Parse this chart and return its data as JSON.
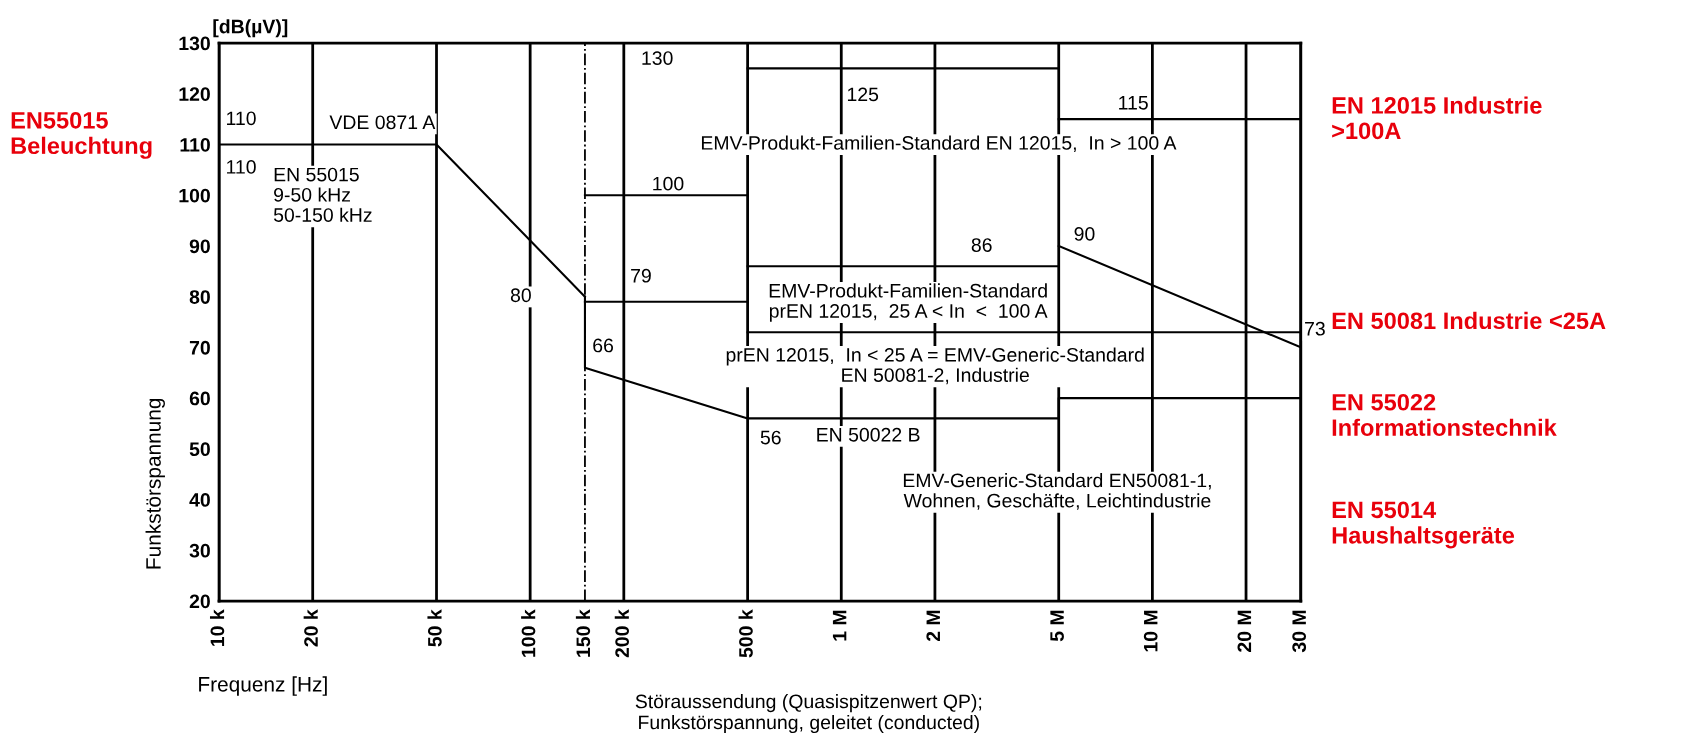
{
  "chart_data": {
    "type": "line",
    "xlabel": "Frequenz [Hz]",
    "ylabel": "Funkstörspannung",
    "log": "x",
    "xlim": [
      10000,
      30000000
    ],
    "xticks": [
      {
        "value": 10000,
        "label": "10 k"
      },
      {
        "value": 20000,
        "label": "20 k"
      },
      {
        "value": 50000,
        "label": "50 k"
      },
      {
        "value": 100000,
        "label": "100 k"
      },
      {
        "value": 150000,
        "label": "150 k"
      },
      {
        "value": 200000,
        "label": "200 k"
      },
      {
        "value": 500000,
        "label": "500 k"
      },
      {
        "value": 1000000,
        "label": "1 M"
      },
      {
        "value": 2000000,
        "label": "2 M"
      },
      {
        "value": 5000000,
        "label": "5 M"
      },
      {
        "value": 10000000,
        "label": "10 M"
      },
      {
        "value": 20000000,
        "label": "20 M"
      },
      {
        "value": 30000000,
        "label": "30 M"
      }
    ],
    "ylim": [
      20,
      130
    ],
    "yticks": [
      20,
      30,
      40,
      50,
      60,
      70,
      80,
      90,
      100,
      110,
      120,
      130
    ],
    "grid": "x",
    "ref_lines": [
      {
        "axis": "x",
        "value": 150000,
        "color": "#000000",
        "line_style": "dashed"
      }
    ],
    "series": [
      {
        "color": "#000000",
        "x": [
          10000,
          50000,
          150000
        ],
        "values": [
          110,
          110,
          80
        ]
      },
      {
        "color": "#000000",
        "x": [
          150000,
          150000,
          500000,
          5000000,
          5000000,
          30000000
        ],
        "values": [
          80,
          66,
          56,
          56,
          60,
          60
        ]
      },
      {
        "color": "#000000",
        "x": [
          150000,
          500000
        ],
        "values": [
          79,
          79
        ]
      },
      {
        "color": "#000000",
        "x": [
          150000,
          500000
        ],
        "values": [
          100,
          100
        ]
      },
      {
        "color": "#000000",
        "x": [
          500000,
          5000000
        ],
        "values": [
          125,
          125
        ]
      },
      {
        "color": "#000000",
        "x": [
          5000000,
          30000000
        ],
        "values": [
          115,
          115
        ]
      },
      {
        "color": "#000000",
        "x": [
          500000,
          5000000
        ],
        "values": [
          86,
          86
        ]
      },
      {
        "color": "#000000",
        "x": [
          5000000,
          30000000
        ],
        "values": [
          90,
          70
        ]
      },
      {
        "color": "#000000",
        "x": [
          500000,
          30000000
        ],
        "values": [
          73,
          73
        ]
      }
    ],
    "annotations": [
      "[dB(µV)]",
      "Störaussendung (Quasispitzenwert QP);\nFunkstörspannung, geleitet (conducted)",
      "EN55015\nBeleuchtung",
      "EN 12015 Industrie\n>100A",
      "EN 50081 Industrie <25A",
      "EN 55022\nInformationstechnik",
      "EN 55014\nHaushaltsgeräte",
      "110",
      "VDE 0871 A",
      "110",
      "EN 55015\n9-50 kHz\n50-150 kHz",
      "80",
      "130",
      "100",
      "79",
      "66",
      "56",
      "125",
      "115",
      "86",
      "90",
      "73",
      "EMV-Produkt-Familien-Standard EN 12015,  In > 100 A",
      "EMV-Produkt-Familien-Standard\nprEN 12015,  25 A < In  <  100 A",
      "prEN 12015,  In < 25 A = EMV-Generic-Standard\nEN 50081-2, Industrie",
      "EN 50022 B",
      "EMV-Generic-Standard EN50081-1,\nWohnen, Geschäfte, Leichtindustrie"
    ]
  }
}
